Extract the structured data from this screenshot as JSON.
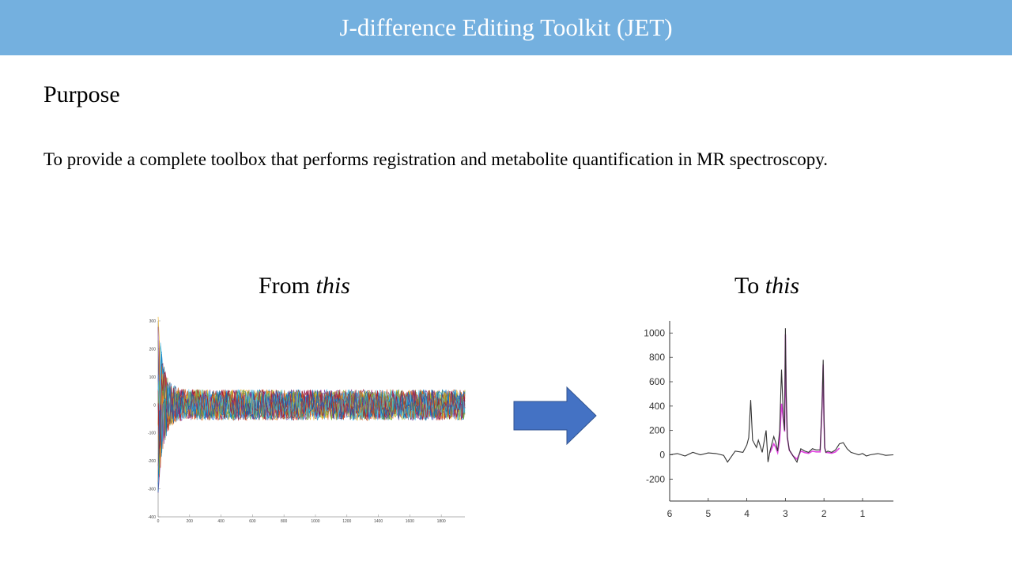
{
  "header": {
    "title": "J-difference Editing Toolkit (JET)"
  },
  "section": {
    "heading": "Purpose",
    "body": "To provide a complete toolbox that performs registration and metabolite quantification in MR spectroscopy."
  },
  "captions": {
    "left_prefix": "From ",
    "left_em": "this",
    "right_prefix": "To ",
    "right_em": "this"
  },
  "colors": {
    "banner": "#74b0df",
    "arrow": "#4472c4",
    "spectrum": "#333333",
    "fit": "#e040e0"
  },
  "arrow_icon": "right-arrow-icon",
  "chart_data": [
    {
      "type": "line",
      "title": "",
      "xlabel": "",
      "ylabel": "",
      "xlim": [
        0,
        1950
      ],
      "ylim": [
        -400,
        300
      ],
      "x_ticks": [
        "0",
        "200",
        "400",
        "600",
        "800",
        "1000",
        "1200",
        "1400",
        "1600",
        "1800"
      ],
      "y_ticks": [
        "300",
        "200",
        "100",
        "0",
        "-100",
        "-200",
        "-300",
        "-400"
      ],
      "description_series": "many overlaid multi-colored transient signals decaying to a noise band of about ±60"
    },
    {
      "type": "line",
      "title": "",
      "xlabel": "",
      "ylabel": "",
      "xlim": [
        6,
        0.2
      ],
      "ylim": [
        -380,
        1100
      ],
      "x_ticks": [
        "6",
        "5",
        "4",
        "3",
        "2",
        "1"
      ],
      "y_ticks": [
        "1000",
        "800",
        "600",
        "400",
        "200",
        "0",
        "-200"
      ],
      "series": [
        {
          "x": [
            6.0,
            5.8,
            5.6,
            5.4,
            5.2,
            5.0,
            4.8,
            4.6,
            4.5,
            4.3,
            4.1,
            4.0,
            3.95,
            3.9,
            3.85,
            3.75,
            3.7,
            3.6,
            3.5,
            3.45,
            3.4,
            3.3,
            3.25,
            3.2,
            3.15,
            3.1,
            3.05,
            3.02,
            3.0,
            2.98,
            2.95,
            2.9,
            2.8,
            2.7,
            2.6,
            2.5,
            2.4,
            2.3,
            2.2,
            2.1,
            2.05,
            2.02,
            2.0,
            1.98,
            1.95,
            1.9,
            1.8,
            1.7,
            1.6,
            1.5,
            1.4,
            1.3,
            1.2,
            1.1,
            1.0,
            0.9,
            0.8,
            0.6,
            0.4,
            0.2
          ],
          "y": [
            0,
            10,
            -10,
            20,
            0,
            15,
            10,
            -5,
            -60,
            30,
            20,
            80,
            140,
            450,
            120,
            60,
            120,
            20,
            200,
            -60,
            30,
            150,
            100,
            30,
            200,
            700,
            300,
            200,
            1040,
            500,
            150,
            40,
            -10,
            -60,
            50,
            30,
            20,
            50,
            40,
            40,
            400,
            780,
            300,
            60,
            20,
            30,
            20,
            40,
            90,
            100,
            50,
            20,
            10,
            0,
            10,
            -10,
            0,
            10,
            -5,
            0
          ]
        }
      ]
    }
  ]
}
